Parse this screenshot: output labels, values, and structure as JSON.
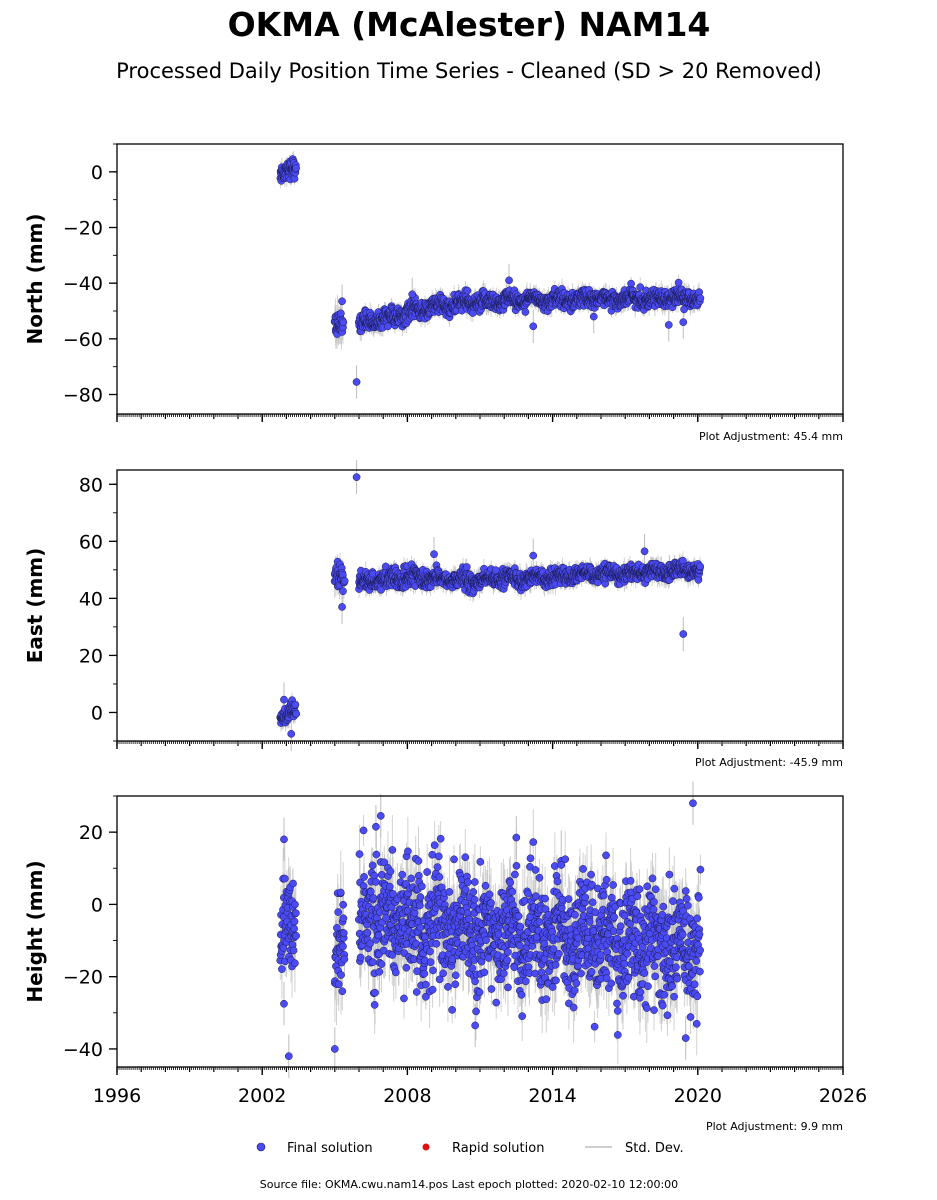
{
  "title": "OKMA (McAlester) NAM14",
  "subtitle": "Processed Daily Position Time Series - Cleaned (SD > 20 Removed)",
  "colors": {
    "final": "#4b4bf5",
    "rapid": "#e01010",
    "std": "#bdbdbd",
    "edge": "#1a1a50"
  },
  "legend": {
    "final_label": "Final solution",
    "rapid_label": "Rapid solution",
    "std_label": "Std. Dev."
  },
  "footer": "Source file: OKMA.cwu.nam14.pos  Last epoch plotted: 2020-02-10 12:00:00",
  "chart_data": [
    {
      "type": "scatter",
      "ylabel": "North (mm)",
      "xlim": [
        1996,
        2026
      ],
      "ylim": [
        -87,
        10
      ],
      "xticks": [
        1996,
        2002,
        2008,
        2014,
        2020,
        2026
      ],
      "xtick_labels_visible": false,
      "yticks": [
        0,
        -20,
        -40,
        -60,
        -80
      ],
      "adjustment": "Plot Adjustment: 45.4 mm",
      "grid": false,
      "segments": [
        {
          "x": [
            2002.75,
            2003.4
          ],
          "y": [
            0.5,
            0.5
          ],
          "noise": 1.7,
          "err": 2.5
        },
        {
          "x": [
            2005.0,
            2005.35
          ],
          "y": [
            -54,
            -58
          ],
          "noise": 2.2,
          "err": 5
        },
        {
          "x": [
            2006.0,
            2007.0
          ],
          "y": [
            -54.5,
            -53
          ],
          "noise": 1.4,
          "err": 2.5
        },
        {
          "x": [
            2007.0,
            2009.0
          ],
          "y": [
            -53,
            -48.5
          ],
          "noise": 1.6,
          "err": 2.5
        },
        {
          "x": [
            2009.0,
            2012.0
          ],
          "y": [
            -48.5,
            -46
          ],
          "noise": 1.6,
          "err": 2.5
        },
        {
          "x": [
            2012.0,
            2020.1
          ],
          "y": [
            -46,
            -45.3
          ],
          "noise": 1.4,
          "err": 2.5
        }
      ],
      "outliers": [
        {
          "x": 2005.3,
          "y": -46.5
        },
        {
          "x": 2005.9,
          "y": -75.5
        },
        {
          "x": 2008.2,
          "y": -44
        },
        {
          "x": 2012.2,
          "y": -39
        },
        {
          "x": 2013.2,
          "y": -55.5
        },
        {
          "x": 2015.7,
          "y": -52
        },
        {
          "x": 2018.8,
          "y": -55
        },
        {
          "x": 2019.4,
          "y": -54
        }
      ]
    },
    {
      "type": "scatter",
      "ylabel": "East (mm)",
      "xlim": [
        1996,
        2026
      ],
      "ylim": [
        -10,
        85
      ],
      "xticks": [
        1996,
        2002,
        2008,
        2014,
        2020,
        2026
      ],
      "xtick_labels_visible": false,
      "yticks": [
        80,
        60,
        40,
        20,
        0
      ],
      "adjustment": "Plot Adjustment: -45.9 mm",
      "grid": false,
      "segments": [
        {
          "x": [
            2002.75,
            2003.4
          ],
          "y": [
            -1,
            -1
          ],
          "noise": 1.6,
          "err": 2.5
        },
        {
          "x": [
            2005.0,
            2005.4
          ],
          "y": [
            47,
            45
          ],
          "noise": 2.2,
          "err": 4
        },
        {
          "x": [
            2006.0,
            2008.0
          ],
          "y": [
            45.5,
            47.5
          ],
          "noise": 1.6,
          "err": 2.5
        },
        {
          "x": [
            2008.0,
            2011.0
          ],
          "y": [
            47.5,
            46
          ],
          "noise": 1.5,
          "err": 2.5
        },
        {
          "x": [
            2011.0,
            2020.1
          ],
          "y": [
            46.5,
            50
          ],
          "noise": 1.3,
          "err": 2.5
        }
      ],
      "outliers": [
        {
          "x": 2002.9,
          "y": 4.5
        },
        {
          "x": 2003.2,
          "y": -7.5
        },
        {
          "x": 2005.3,
          "y": 37
        },
        {
          "x": 2005.9,
          "y": 82.5
        },
        {
          "x": 2009.1,
          "y": 55.5
        },
        {
          "x": 2013.2,
          "y": 55
        },
        {
          "x": 2017.8,
          "y": 56.5
        },
        {
          "x": 2019.4,
          "y": 27.5
        }
      ]
    },
    {
      "type": "scatter",
      "ylabel": "Height (mm)",
      "xlim": [
        1996,
        2026
      ],
      "ylim": [
        -45,
        30
      ],
      "xticks": [
        1996,
        2002,
        2008,
        2014,
        2020,
        2026
      ],
      "xtick_labels": [
        "1996",
        "2002",
        "2008",
        "2014",
        "2020",
        "2026"
      ],
      "xtick_labels_visible": true,
      "yticks": [
        20,
        0,
        -20,
        -40
      ],
      "adjustment": "Plot Adjustment: 9.9 mm",
      "grid": false,
      "segments": [
        {
          "x": [
            2002.75,
            2003.4
          ],
          "y": [
            -3,
            -8
          ],
          "noise": 7,
          "err": 7
        },
        {
          "x": [
            2005.0,
            2005.4
          ],
          "y": [
            -18,
            -10
          ],
          "noise": 7,
          "err": 8
        },
        {
          "x": [
            2006.0,
            2020.1
          ],
          "y": [
            -4,
            -12
          ],
          "noise": 7.5,
          "err": 7
        }
      ],
      "outliers": [
        {
          "x": 2002.9,
          "y": 18
        },
        {
          "x": 2002.9,
          "y": -27.5
        },
        {
          "x": 2003.1,
          "y": -42
        },
        {
          "x": 2005.0,
          "y": -40
        },
        {
          "x": 2006.7,
          "y": 21.5
        },
        {
          "x": 2006.9,
          "y": 24.5
        },
        {
          "x": 2012.5,
          "y": 18.5
        },
        {
          "x": 2010.8,
          "y": -33.5
        },
        {
          "x": 2019.8,
          "y": 28
        },
        {
          "x": 2019.5,
          "y": -37
        }
      ]
    }
  ]
}
